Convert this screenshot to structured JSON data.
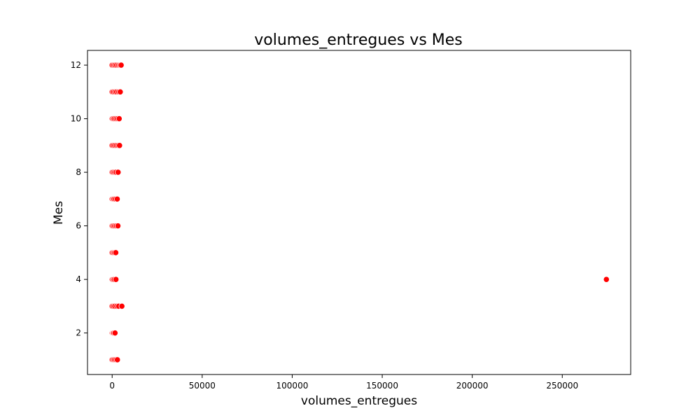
{
  "chart_data": {
    "type": "scatter",
    "title": "volumes_entregues vs Mes",
    "xlabel": "volumes_entregues",
    "ylabel": "Mes",
    "xlim": [
      -13700,
      288000
    ],
    "ylim": [
      0.45,
      12.55
    ],
    "x_ticks": [
      0,
      50000,
      100000,
      150000,
      200000,
      250000
    ],
    "x_tick_labels": [
      "0",
      "50000",
      "100000",
      "150000",
      "200000",
      "250000"
    ],
    "y_ticks": [
      2,
      4,
      6,
      8,
      10,
      12
    ],
    "y_tick_labels": [
      "2",
      "4",
      "6",
      "8",
      "10",
      "12"
    ],
    "grid": false,
    "marker_color": "#ff0000",
    "points": [
      {
        "x": 0,
        "y": 1
      },
      {
        "x": 600,
        "y": 1
      },
      {
        "x": 1300,
        "y": 1
      },
      {
        "x": 2100,
        "y": 1
      },
      {
        "x": 2900,
        "y": 1
      },
      {
        "x": 0,
        "y": 2
      },
      {
        "x": 400,
        "y": 2
      },
      {
        "x": 900,
        "y": 2
      },
      {
        "x": 1600,
        "y": 2
      },
      {
        "x": 0,
        "y": 3
      },
      {
        "x": 700,
        "y": 3
      },
      {
        "x": 1500,
        "y": 3
      },
      {
        "x": 2600,
        "y": 3
      },
      {
        "x": 3600,
        "y": 3
      },
      {
        "x": 5400,
        "y": 3
      },
      {
        "x": 0,
        "y": 4
      },
      {
        "x": 500,
        "y": 4
      },
      {
        "x": 1200,
        "y": 4
      },
      {
        "x": 2100,
        "y": 4
      },
      {
        "x": 274500,
        "y": 4
      },
      {
        "x": 0,
        "y": 5
      },
      {
        "x": 600,
        "y": 5
      },
      {
        "x": 1300,
        "y": 5
      },
      {
        "x": 2000,
        "y": 5
      },
      {
        "x": 0,
        "y": 6
      },
      {
        "x": 600,
        "y": 6
      },
      {
        "x": 1400,
        "y": 6
      },
      {
        "x": 2300,
        "y": 6
      },
      {
        "x": 3200,
        "y": 6
      },
      {
        "x": 0,
        "y": 7
      },
      {
        "x": 500,
        "y": 7
      },
      {
        "x": 1100,
        "y": 7
      },
      {
        "x": 1900,
        "y": 7
      },
      {
        "x": 2800,
        "y": 7
      },
      {
        "x": 0,
        "y": 8
      },
      {
        "x": 600,
        "y": 8
      },
      {
        "x": 1400,
        "y": 8
      },
      {
        "x": 2200,
        "y": 8
      },
      {
        "x": 3300,
        "y": 8
      },
      {
        "x": 0,
        "y": 9
      },
      {
        "x": 700,
        "y": 9
      },
      {
        "x": 1500,
        "y": 9
      },
      {
        "x": 2400,
        "y": 9
      },
      {
        "x": 3300,
        "y": 9
      },
      {
        "x": 4100,
        "y": 9
      },
      {
        "x": 0,
        "y": 10
      },
      {
        "x": 500,
        "y": 10
      },
      {
        "x": 1200,
        "y": 10
      },
      {
        "x": 2100,
        "y": 10
      },
      {
        "x": 3000,
        "y": 10
      },
      {
        "x": 3900,
        "y": 10
      },
      {
        "x": 0,
        "y": 11
      },
      {
        "x": 700,
        "y": 11
      },
      {
        "x": 1600,
        "y": 11
      },
      {
        "x": 2500,
        "y": 11
      },
      {
        "x": 3600,
        "y": 11
      },
      {
        "x": 4500,
        "y": 11
      },
      {
        "x": 0,
        "y": 12
      },
      {
        "x": 800,
        "y": 12
      },
      {
        "x": 1600,
        "y": 12
      },
      {
        "x": 2500,
        "y": 12
      },
      {
        "x": 3500,
        "y": 12
      },
      {
        "x": 4300,
        "y": 12
      },
      {
        "x": 5000,
        "y": 12
      }
    ]
  }
}
